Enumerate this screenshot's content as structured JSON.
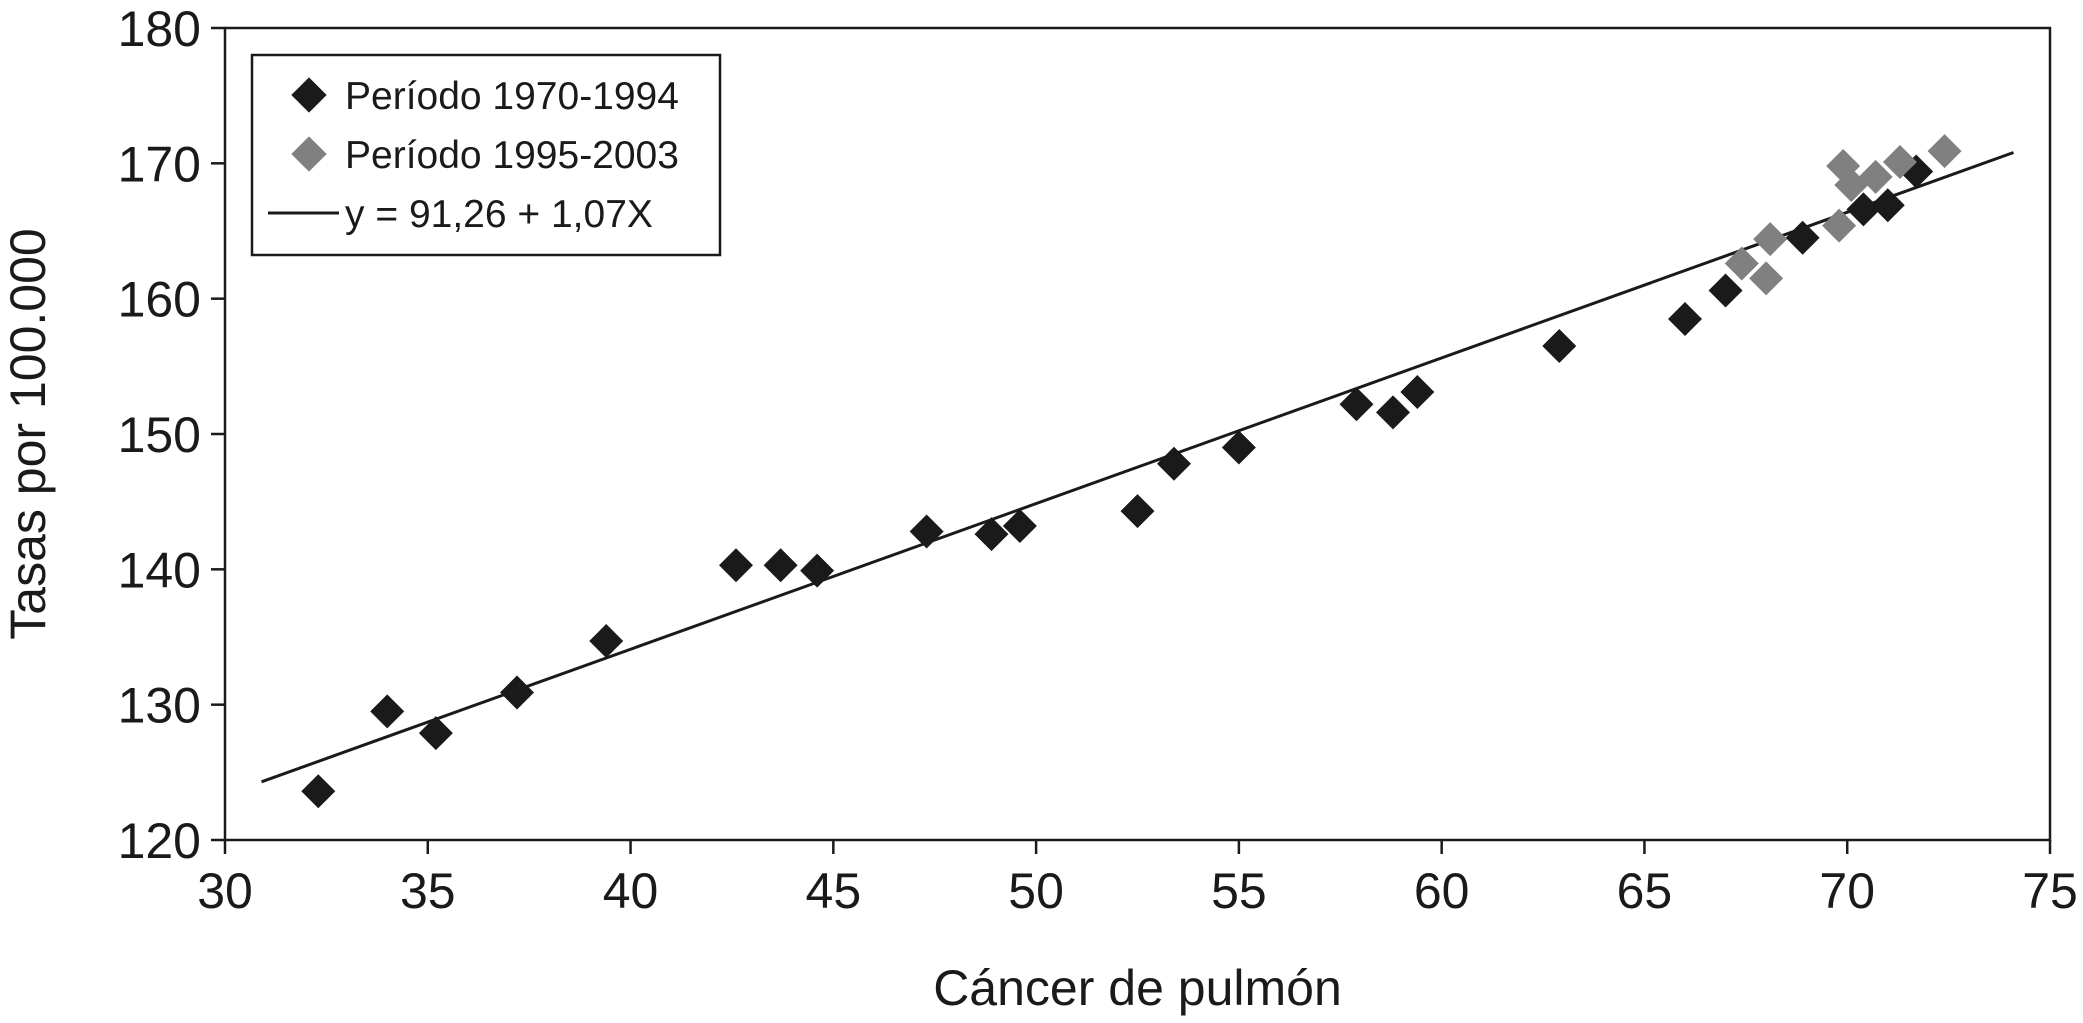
{
  "chart_data": {
    "type": "scatter",
    "title": "",
    "xlabel": "Cáncer de pulmón",
    "ylabel": "Tasas por 100.000",
    "xlim": [
      30,
      75
    ],
    "ylim": [
      120,
      180
    ],
    "xticks": [
      30,
      35,
      40,
      45,
      50,
      55,
      60,
      65,
      70,
      75
    ],
    "yticks": [
      120,
      130,
      140,
      150,
      160,
      170,
      180
    ],
    "grid": false,
    "legend_position": "top-left",
    "series": [
      {
        "name": "Período 1970-1994",
        "color": "#1a1a1a",
        "marker": "diamond",
        "points": [
          [
            32.3,
            123.6
          ],
          [
            34.0,
            129.5
          ],
          [
            35.2,
            127.9
          ],
          [
            37.2,
            130.9
          ],
          [
            39.4,
            134.7
          ],
          [
            42.6,
            140.3
          ],
          [
            43.7,
            140.3
          ],
          [
            44.6,
            139.9
          ],
          [
            47.3,
            142.8
          ],
          [
            48.9,
            142.6
          ],
          [
            49.6,
            143.2
          ],
          [
            52.5,
            144.3
          ],
          [
            53.4,
            147.8
          ],
          [
            55.0,
            149.0
          ],
          [
            57.9,
            152.2
          ],
          [
            58.8,
            151.6
          ],
          [
            59.4,
            153.1
          ],
          [
            62.9,
            156.5
          ],
          [
            66.0,
            158.5
          ],
          [
            67.0,
            160.6
          ],
          [
            68.9,
            164.5
          ],
          [
            70.4,
            166.6
          ],
          [
            71.0,
            166.9
          ],
          [
            71.7,
            169.4
          ]
        ]
      },
      {
        "name": "Período 1995-2003",
        "color": "#808080",
        "marker": "diamond",
        "points": [
          [
            67.4,
            162.6
          ],
          [
            68.1,
            164.4
          ],
          [
            68.0,
            161.5
          ],
          [
            69.8,
            165.4
          ],
          [
            69.9,
            169.8
          ],
          [
            70.1,
            168.4
          ],
          [
            70.7,
            169.0
          ],
          [
            71.3,
            170.1
          ],
          [
            72.4,
            170.9
          ]
        ]
      }
    ],
    "regression": {
      "label": "y = 91,26 + 1,07X",
      "color": "#1a1a1a",
      "x_range": [
        30.9,
        74.1
      ],
      "y_range": [
        124.3,
        170.8
      ]
    }
  }
}
